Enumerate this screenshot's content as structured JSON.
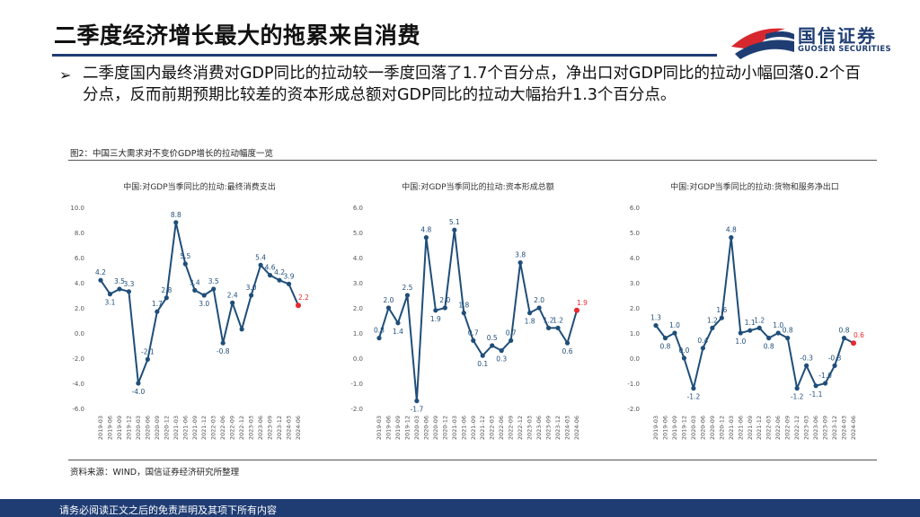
{
  "header": {
    "title": "二季度经济增长最大的拖累来自消费",
    "logo_cn": "国信证券",
    "logo_en": "GUOSEN SECURITIES"
  },
  "bullet": {
    "mark": "➢",
    "text": "二季度国内最终消费对GDP同比的拉动较一季度回落了1.7个百分点，净出口对GDP同比的拉动小幅回落0.2个百分点，反而前期预期比较差的资本形成总额对GDP同比的拉动大幅抬升1.3个百分点。"
  },
  "figure": {
    "title": "图2：中国三大需求对不变价GDP增长的拉动幅度一览",
    "source": "资料来源：WIND，国信证券经济研究所整理"
  },
  "footer": {
    "disclaimer": "请务必阅读正文之后的免责声明及其项下所有内容"
  },
  "colors": {
    "line": "#1f4e79",
    "last_point": "#e8282f",
    "brand": "#1f3d73",
    "brand_red": "#d7282f"
  },
  "chart_data": [
    {
      "type": "line",
      "title": "中国:对GDP当季同比的拉动:最终消费支出",
      "x": [
        "2019-03",
        "2019-06",
        "2019-09",
        "2019-12",
        "2020-03",
        "2020-06",
        "2020-09",
        "2020-12",
        "2021-03",
        "2021-06",
        "2021-09",
        "2021-12",
        "2022-03",
        "2022-06",
        "2022-09",
        "2022-12",
        "2023-03",
        "2023-06",
        "2023-09",
        "2023-12",
        "2024-03",
        "2024-06"
      ],
      "values": [
        4.2,
        3.1,
        3.5,
        3.3,
        -4.0,
        -2.1,
        1.7,
        2.8,
        8.8,
        5.5,
        3.4,
        3.0,
        3.5,
        -0.8,
        2.4,
        0.3,
        3.0,
        5.4,
        4.6,
        4.2,
        3.9,
        2.2
      ],
      "labels": [
        "4.2",
        "3.1",
        "3.5",
        "3.3",
        "-4.0",
        "-2.1",
        "1.7",
        "2.8",
        "8.8",
        "5.5",
        "3.4",
        "3.0",
        "3.5",
        "-0.8",
        "2.4",
        "",
        "3.0",
        "5.4",
        "4.6",
        "4.2",
        "3.9",
        "2.2"
      ],
      "ylim": [
        -6,
        10
      ],
      "yticks": [
        "-6.0",
        "-4.0",
        "-2.0",
        "0.0",
        "2.0",
        "4.0",
        "6.0",
        "8.0",
        "10.0"
      ],
      "ytick_values": [
        -6,
        -4,
        -2,
        0,
        2,
        4,
        6,
        8,
        10
      ]
    },
    {
      "type": "line",
      "title": "中国:对GDP当季同比的拉动:资本形成总额",
      "x": [
        "2019-03",
        "2019-06",
        "2019-09",
        "2019-12",
        "2020-03",
        "2020-06",
        "2020-09",
        "2020-12",
        "2021-03",
        "2021-06",
        "2021-09",
        "2021-12",
        "2022-03",
        "2022-06",
        "2022-09",
        "2022-12",
        "2023-03",
        "2023-06",
        "2023-09",
        "2023-12",
        "2024-03",
        "2024-06"
      ],
      "values": [
        0.8,
        2.0,
        1.4,
        2.5,
        -1.7,
        4.8,
        1.9,
        2.0,
        5.1,
        1.8,
        0.7,
        0.1,
        0.5,
        0.3,
        0.7,
        3.8,
        1.8,
        2.0,
        1.2,
        1.2,
        0.6,
        1.9
      ],
      "labels": [
        "0.8",
        "2.0",
        "1.4",
        "2.5",
        "-1.7",
        "4.8",
        "1.9",
        "2.0",
        "5.1",
        "1.8",
        "0.7",
        "0.1",
        "0.5",
        "0.3",
        "0.7",
        "3.8",
        "1.8",
        "2.0",
        "1.2",
        "1.2",
        "0.6",
        "1.9"
      ],
      "ylim": [
        -2,
        6
      ],
      "yticks": [
        "-2.0",
        "-1.0",
        "0.0",
        "1.0",
        "2.0",
        "3.0",
        "4.0",
        "5.0",
        "6.0"
      ],
      "ytick_values": [
        -2,
        -1,
        0,
        1,
        2,
        3,
        4,
        5,
        6
      ]
    },
    {
      "type": "line",
      "title": "中国:对GDP当季同比的拉动:货物和服务净出口",
      "x": [
        "2019-03",
        "2019-06",
        "2019-09",
        "2019-12",
        "2020-03",
        "2020-06",
        "2020-09",
        "2020-12",
        "2021-03",
        "2021-06",
        "2021-09",
        "2021-12",
        "2022-03",
        "2022-06",
        "2022-09",
        "2022-12",
        "2023-03",
        "2023-06",
        "2023-09",
        "2023-12",
        "2024-03",
        "2024-06"
      ],
      "values": [
        1.3,
        0.8,
        1.0,
        0.0,
        -1.2,
        0.4,
        1.2,
        1.6,
        4.8,
        1.0,
        1.1,
        1.2,
        0.8,
        1.0,
        0.8,
        -1.2,
        -0.3,
        -1.1,
        -1.0,
        -0.3,
        0.8,
        0.6
      ],
      "labels": [
        "1.3",
        "0.8",
        "1.0",
        "0.0",
        "-1.2",
        "0.4",
        "1.2",
        "1.6",
        "4.8",
        "1.0",
        "1.1",
        "1.2",
        "0.8",
        "1.0",
        "0.8",
        "-1.2",
        "-0.3",
        "-1.1",
        "-1.0",
        "-0.3",
        "0.8",
        "0.6"
      ],
      "ylim": [
        -2,
        6
      ],
      "yticks": [
        "-2.0",
        "-1.0",
        "0.0",
        "1.0",
        "2.0",
        "3.0",
        "4.0",
        "5.0",
        "6.0"
      ],
      "ytick_values": [
        -2,
        -1,
        0,
        1,
        2,
        3,
        4,
        5,
        6
      ]
    }
  ]
}
